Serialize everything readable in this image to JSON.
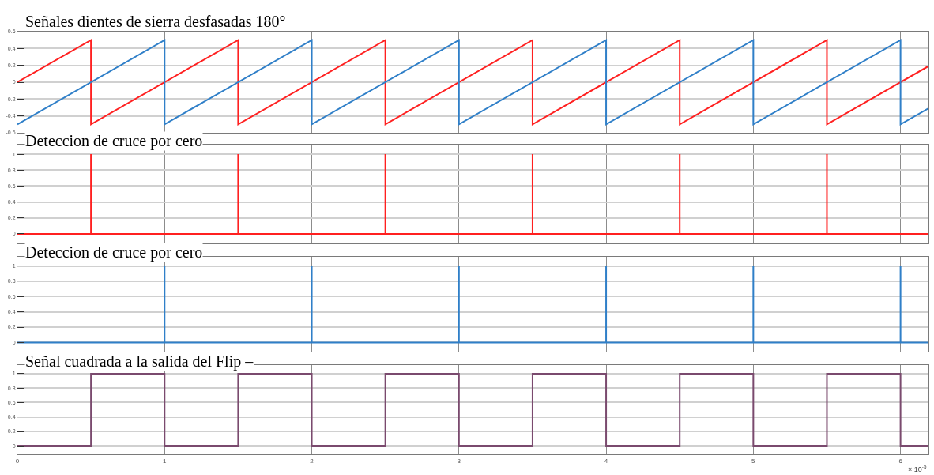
{
  "chart_data": [
    {
      "type": "line",
      "title": "Señales dientes de sierra desfasadas 180°",
      "xlim": [
        0,
        6.19
      ],
      "xticks": [
        0,
        1,
        2,
        3,
        4,
        5,
        6
      ],
      "ylim": [
        -0.6,
        0.6
      ],
      "yticks": [
        -0.6,
        -0.4,
        -0.2,
        0,
        0.2,
        0.4,
        0.6
      ],
      "grid": true,
      "tick_labels": "y",
      "series": [
        {
          "color": "#ff2020",
          "x": [
            0,
            0.5,
            0.5,
            1.5,
            1.5,
            2.5,
            2.5,
            3.5,
            3.5,
            4.5,
            4.5,
            5.5,
            5.5,
            6.19
          ],
          "values": [
            0,
            0.5,
            -0.5,
            0.5,
            -0.5,
            0.5,
            -0.5,
            0.5,
            -0.5,
            0.5,
            -0.5,
            0.5,
            -0.5,
            0.19
          ]
        },
        {
          "color": "#2f7fc8",
          "x": [
            0,
            1,
            1,
            2,
            2,
            3,
            3,
            4,
            4,
            5,
            5,
            6,
            6,
            6.19
          ],
          "values": [
            -0.5,
            0.5,
            -0.5,
            0.5,
            -0.5,
            0.5,
            -0.5,
            0.5,
            -0.5,
            0.5,
            -0.5,
            0.5,
            -0.5,
            -0.31
          ]
        }
      ]
    },
    {
      "type": "line",
      "title": "Deteccion de cruce por cero",
      "xlim": [
        0,
        6.19
      ],
      "xticks": [
        0,
        1,
        2,
        3,
        4,
        5,
        6
      ],
      "ylim": [
        -0.12,
        1.12
      ],
      "yticks": [
        0,
        0.2,
        0.4,
        0.6,
        0.8,
        1
      ],
      "grid": true,
      "tick_labels": "y",
      "series": [
        {
          "color": "#ff2020",
          "x": [
            0,
            0.5,
            0.5,
            0.5,
            1.5,
            1.5,
            1.5,
            2.5,
            2.5,
            2.5,
            3.5,
            3.5,
            3.5,
            4.5,
            4.5,
            4.5,
            5.5,
            5.5,
            5.5,
            6.19
          ],
          "values": [
            0,
            0,
            1,
            0,
            0,
            1,
            0,
            0,
            1,
            0,
            0,
            1,
            0,
            0,
            1,
            0,
            0,
            1,
            0,
            0
          ]
        }
      ]
    },
    {
      "type": "line",
      "title": "Deteccion de cruce por cero",
      "xlim": [
        0,
        6.19
      ],
      "xticks": [
        0,
        1,
        2,
        3,
        4,
        5,
        6
      ],
      "ylim": [
        -0.12,
        1.12
      ],
      "yticks": [
        0,
        0.2,
        0.4,
        0.6,
        0.8,
        1
      ],
      "grid": true,
      "tick_labels": "y",
      "series": [
        {
          "color": "#2f7fc8",
          "x": [
            0,
            1,
            1,
            1,
            2,
            2,
            2,
            3,
            3,
            3,
            4,
            4,
            4,
            5,
            5,
            5,
            6,
            6,
            6,
            6.19
          ],
          "values": [
            0,
            0,
            1,
            0,
            0,
            1,
            0,
            0,
            1,
            0,
            0,
            1,
            0,
            0,
            1,
            0,
            0,
            1,
            0,
            0
          ]
        }
      ]
    },
    {
      "type": "step",
      "title": "Señal cuadrada a la salida del Flip –",
      "xlim": [
        0,
        6.19
      ],
      "xticks": [
        0,
        1,
        2,
        3,
        4,
        5,
        6
      ],
      "ylim": [
        -0.12,
        1.12
      ],
      "yticks": [
        0,
        0.2,
        0.4,
        0.6,
        0.8,
        1
      ],
      "grid": true,
      "annotations": [
        "× 10$^{-5}$"
      ],
      "series": [
        {
          "color": "#7a4a6e",
          "x": [
            0,
            0.5,
            1,
            1.5,
            2,
            2.5,
            3,
            3.5,
            4,
            4.5,
            5,
            5.5,
            6,
            6.19
          ],
          "values": [
            0,
            1,
            0,
            1,
            0,
            1,
            0,
            1,
            0,
            1,
            0,
            1,
            0,
            0
          ]
        }
      ]
    }
  ]
}
